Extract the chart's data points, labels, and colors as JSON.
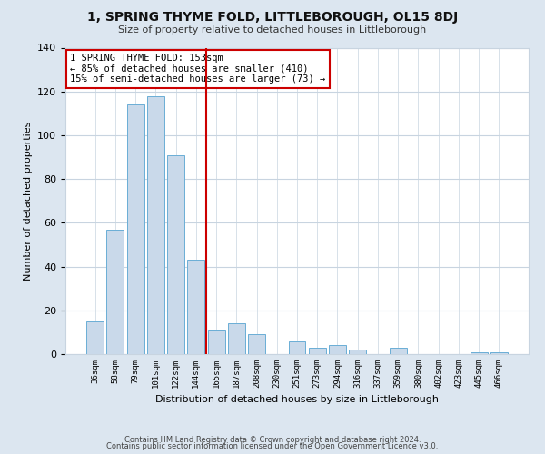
{
  "title": "1, SPRING THYME FOLD, LITTLEBOROUGH, OL15 8DJ",
  "subtitle": "Size of property relative to detached houses in Littleborough",
  "xlabel": "Distribution of detached houses by size in Littleborough",
  "ylabel": "Number of detached properties",
  "bar_labels": [
    "36sqm",
    "58sqm",
    "79sqm",
    "101sqm",
    "122sqm",
    "144sqm",
    "165sqm",
    "187sqm",
    "208sqm",
    "230sqm",
    "251sqm",
    "273sqm",
    "294sqm",
    "316sqm",
    "337sqm",
    "359sqm",
    "380sqm",
    "402sqm",
    "423sqm",
    "445sqm",
    "466sqm"
  ],
  "bar_values": [
    15,
    57,
    114,
    118,
    91,
    43,
    11,
    14,
    9,
    0,
    6,
    3,
    4,
    2,
    0,
    3,
    0,
    0,
    0,
    1,
    1
  ],
  "bar_color": "#c9d9ea",
  "bar_edge_color": "#6aaed6",
  "vline_color": "#cc0000",
  "vline_pos": 5.5,
  "annotation_title": "1 SPRING THYME FOLD: 153sqm",
  "annotation_line1": "← 85% of detached houses are smaller (410)",
  "annotation_line2": "15% of semi-detached houses are larger (73) →",
  "annotation_box_color": "#ffffff",
  "annotation_box_edge": "#cc0000",
  "ylim": [
    0,
    140
  ],
  "yticks": [
    0,
    20,
    40,
    60,
    80,
    100,
    120,
    140
  ],
  "footer1": "Contains HM Land Registry data © Crown copyright and database right 2024.",
  "footer2": "Contains public sector information licensed under the Open Government Licence v3.0.",
  "fig_bg_color": "#dce6f0",
  "plot_bg_color": "#ffffff",
  "grid_color": "#c8d4e0"
}
